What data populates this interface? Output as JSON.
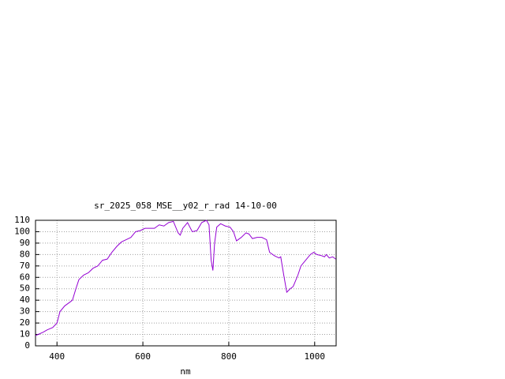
{
  "chart_data": {
    "type": "line",
    "title": "sr_2025_058_MSE__y02_r_rad 14-10-00",
    "x_label": "nm",
    "x": [
      350,
      368,
      377,
      390,
      400,
      407,
      418,
      429,
      436,
      444,
      451,
      462,
      473,
      484,
      495,
      506,
      517,
      528,
      539,
      550,
      561,
      572,
      583,
      594,
      605,
      616,
      627,
      638,
      649,
      660,
      671,
      682,
      687,
      693,
      704,
      715,
      726,
      737,
      748,
      754,
      759,
      763,
      767,
      772,
      781,
      792,
      803,
      811,
      818,
      829,
      840,
      847,
      855,
      866,
      877,
      888,
      895,
      906,
      917,
      921,
      928,
      935,
      943,
      950,
      961,
      968,
      979,
      990,
      998,
      1005,
      1016,
      1023,
      1027,
      1034,
      1042,
      1049
    ],
    "series": [
      {
        "name": "sr_2025_058_MSE__y02_r_rad",
        "color": "#9400d3",
        "values": [
          9,
          12,
          14,
          16,
          20,
          30,
          35,
          38,
          40,
          50,
          58,
          62,
          64,
          68,
          70,
          75,
          76,
          82,
          87,
          91,
          93,
          95,
          100,
          101,
          103,
          103,
          103,
          106,
          105,
          108,
          109,
          99,
          97,
          103,
          108,
          100,
          101,
          108,
          110,
          106,
          75,
          66,
          90,
          104,
          107,
          105,
          104,
          100,
          92,
          95,
          99,
          98,
          94,
          95,
          95,
          93,
          82,
          79,
          77,
          78,
          62,
          47,
          50,
          52,
          62,
          70,
          75,
          80,
          82,
          80,
          79,
          78,
          80,
          77,
          78,
          76
        ]
      }
    ],
    "xlim": [
      350,
      1050
    ],
    "ylim": [
      0,
      110
    ],
    "xticks": [
      400,
      600,
      800,
      1000
    ],
    "yticks": [
      0,
      10,
      20,
      30,
      40,
      50,
      60,
      70,
      80,
      90,
      100,
      110
    ],
    "grid": true
  }
}
